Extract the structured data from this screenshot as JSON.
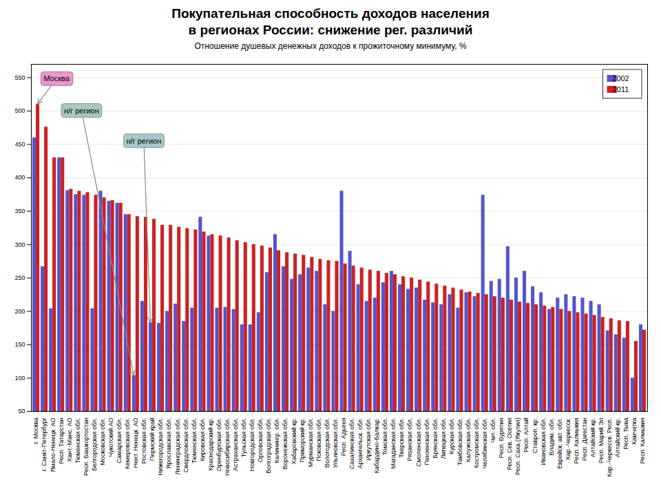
{
  "chart_data": {
    "type": "bar",
    "title": "Покупательная способность доходов населения\nв регионах России: снижение рег. различий",
    "subtitle": "Отношение душевых денежных доходов к прожиточному минимуму, %",
    "categories": [
      "г. Москва",
      "г. Санкт-Петербург",
      "Ямало-Ненецк. АО",
      "Респ. Татарстан",
      "Хант.-Манс. АО",
      "Тюменская обл.",
      "Респ. Башкортостан",
      "Белгородская обл.",
      "Московская обл.",
      "Чукотский АО",
      "Самарская обл.",
      "Кемеровская обл.",
      "Нент. Ненецк. АО",
      "Ростовская обл.",
      "Пермский край",
      "Нижегородская обл.",
      "Ярославская обл.",
      "Ленинградская обл.",
      "Свердловская обл.",
      "Тюменская обл.",
      "Кировская обл.",
      "Краснодарский кр.",
      "Оренбургская обл.",
      "Новосибирская обл.",
      "Астраханская обл.",
      "Тульская обл.",
      "Новгородская обл.",
      "Орловская обл.",
      "Волгоградская обл.",
      "Калинингр. обл.",
      "Воронежская обл.",
      "Хабаровский кр.",
      "Приморский кр.",
      "Мурманская обл.",
      "Псковская обл.",
      "Вологодская обл.",
      "Ульяновская обл.",
      "Респ. Адыгея",
      "Сахалинская обл.",
      "Архангельск. обл.",
      "Иркутская обл.",
      "Кабардино-Балкар.",
      "Томская обл.",
      "Магаданская обл.",
      "Тверская обл.",
      "Рязанская обл.",
      "Смоленская обл.",
      "Пензенская обл.",
      "Брянская обл.",
      "Липецкая обл.",
      "Курская обл.",
      "Тамбовская обл.",
      "Калужская обл.",
      "Костромская обл.",
      "Челябинская обл.",
      "Чит. обл.",
      "Респ. Бурятия",
      "Респ. Сев. Осетия",
      "Респ. Саха (Якутия)",
      "Респ. Алтай",
      "Ставроп. кр.",
      "Ивановская обл.",
      "Владим. обл.",
      "Еврейск. авт. обл.",
      "Кар.-Черкесск.",
      "Респ. Калмыкия",
      "Респ. Дагестан",
      "Алтайский кр.",
      "Респ. Марий Эл",
      "Кар.-Черкесск. Респ.",
      "Алтайский кр.",
      "Респ. Тыва",
      "Камчатка",
      "Респ. Калмыкия"
    ],
    "series": [
      {
        "name": "2002",
        "color": "#5555cc",
        "values": [
          460,
          267,
          204,
          430,
          381,
          375,
          374,
          204,
          380,
          365,
          362,
          345,
          104,
          215,
          183,
          182,
          200,
          211,
          185,
          205,
          341,
          313,
          205,
          206,
          203,
          180,
          180,
          198,
          258,
          315,
          267,
          248,
          255,
          265,
          260,
          210,
          200,
          380,
          290,
          240,
          215,
          220,
          243,
          260,
          240,
          233,
          235,
          217,
          213,
          210,
          225,
          205,
          228,
          222,
          374,
          245,
          248,
          297,
          250,
          260,
          237,
          228,
          203,
          220,
          225,
          222,
          220,
          215,
          210,
          171,
          165,
          160,
          100,
          180
        ]
      },
      {
        "name": "2011",
        "color": "#cc2222",
        "values": [
          510,
          476,
          430,
          430,
          383,
          380,
          378,
          374,
          370,
          366,
          362,
          345,
          342,
          341,
          338,
          329,
          329,
          326,
          324,
          322,
          319,
          315,
          313,
          310,
          306,
          303,
          300,
          298,
          295,
          291,
          288,
          286,
          284,
          281,
          278,
          276,
          275,
          271,
          268,
          265,
          262,
          260,
          257,
          255,
          252,
          250,
          247,
          244,
          241,
          238,
          235,
          232,
          229,
          227,
          225,
          222,
          220,
          217,
          214,
          212,
          210,
          208,
          206,
          203,
          200,
          198,
          196,
          194,
          191,
          189,
          186,
          185,
          155,
          172
        ]
      }
    ],
    "ylim": [
      50,
      570
    ],
    "yticks": [
      50,
      100,
      150,
      200,
      250,
      300,
      350,
      400,
      450,
      500,
      550
    ],
    "grid": true,
    "legend": "upper right",
    "annotations": [
      {
        "text": "Москва",
        "color": "#e898c8",
        "category": "г. Москва",
        "series": "2011"
      },
      {
        "text": "н/г регион",
        "color": "#a8c8b8",
        "category": "Нент. Ненецк. АО",
        "series": "2002"
      },
      {
        "text": "н/г регион",
        "color": "#a8c8c8",
        "category": "Пермский край",
        "series": "2002"
      }
    ]
  }
}
